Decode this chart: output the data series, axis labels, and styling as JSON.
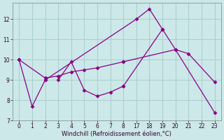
{
  "background_color": "#cce8e8",
  "line_color": "#880088",
  "grid_color": "#aacece",
  "xlabel": "Windchill (Refroidissement éolien,°C)",
  "ylim": [
    7.0,
    12.8
  ],
  "yticks": [
    7,
    8,
    9,
    10,
    11,
    12
  ],
  "xtick_labels": [
    "0",
    "1",
    "2",
    "3",
    "4",
    "5",
    "6",
    "7",
    "8",
    "17",
    "18",
    "19",
    "20",
    "21",
    "22",
    "23"
  ],
  "xtick_pos": [
    0,
    1,
    2,
    3,
    4,
    5,
    6,
    7,
    8,
    9,
    10,
    11,
    12,
    13,
    14,
    15
  ],
  "lines": [
    {
      "comment": "Line1: (0,10)->(1,7.7)->(2,9.0) then (9,12.0)->(10,12.5)->(11,11.5)",
      "segments": [
        {
          "x": [
            0,
            1,
            2
          ],
          "y": [
            10.0,
            7.7,
            9.0
          ]
        },
        {
          "x": [
            2,
            9,
            10,
            11
          ],
          "y": [
            9.0,
            12.0,
            12.5,
            11.5
          ]
        }
      ]
    },
    {
      "comment": "Line2: (3,9.0)->(4,9.9)->(5,8.5)->(6,8.2)->(7,8.4)->(8,8.7) then (8,8.7)->(11,11.5)->(12,10.5)->(13,10.3)->(15,8.9)",
      "segments": [
        {
          "x": [
            3,
            4,
            5,
            6,
            7,
            8
          ],
          "y": [
            9.0,
            9.9,
            8.5,
            8.2,
            8.4,
            8.7
          ]
        },
        {
          "x": [
            8,
            11,
            12,
            13,
            15
          ],
          "y": [
            8.7,
            11.5,
            10.5,
            10.3,
            8.9
          ]
        }
      ]
    },
    {
      "comment": "Line3: (0,10)->(2,9.1)->(3,9.2)->(4,9.4)->(5,9.5)->(6,9.6)->(8,9.9) then (8,9.9)->(12,10.5)->(15,7.4)",
      "segments": [
        {
          "x": [
            0,
            2,
            3,
            4,
            5,
            6,
            8
          ],
          "y": [
            10.0,
            9.1,
            9.2,
            9.4,
            9.5,
            9.6,
            9.9
          ]
        },
        {
          "x": [
            8,
            12,
            15
          ],
          "y": [
            9.9,
            10.5,
            7.4
          ]
        }
      ]
    }
  ]
}
